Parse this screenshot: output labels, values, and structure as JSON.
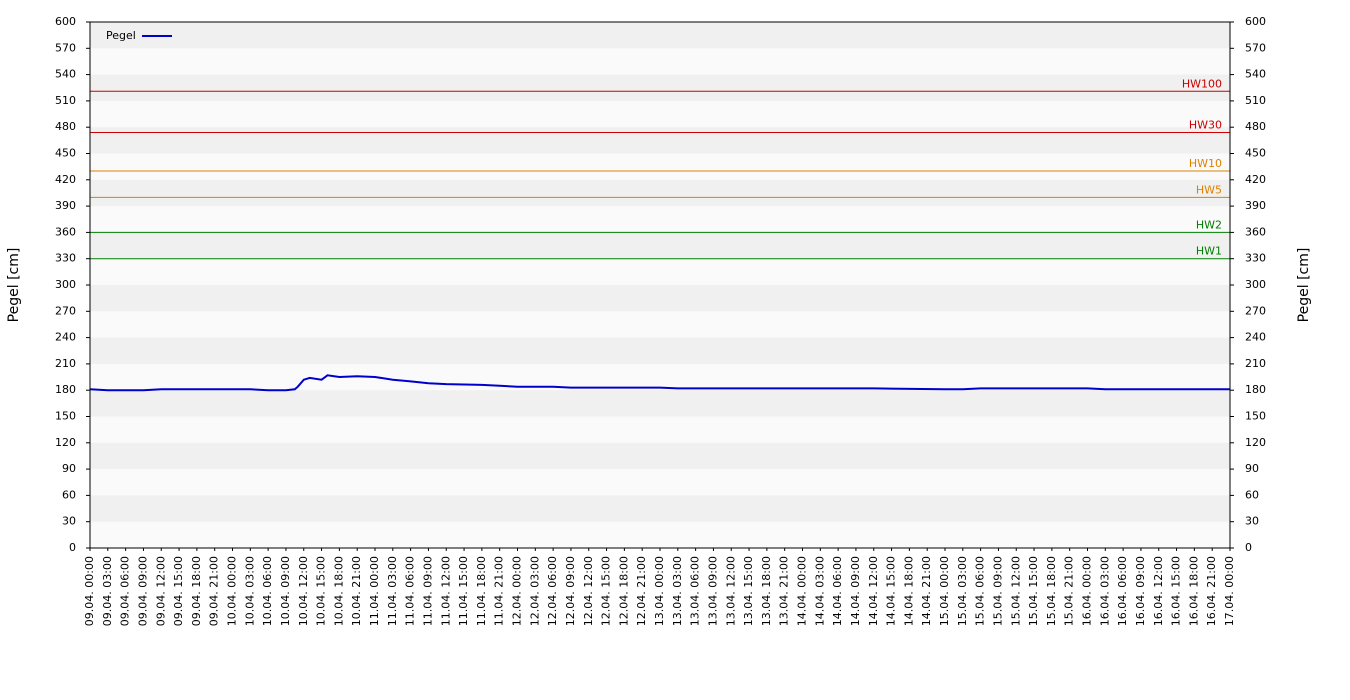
{
  "chart_data": {
    "type": "line",
    "y_label": "Pegel [cm]",
    "y2_label": "Pegel [cm]",
    "xlim": [
      "09.04. 00:00",
      "17.04. 00:00"
    ],
    "xticks": [
      "09.04. 00:00",
      "09.04. 03:00",
      "09.04. 06:00",
      "09.04. 09:00",
      "09.04. 12:00",
      "09.04. 15:00",
      "09.04. 18:00",
      "09.04. 21:00",
      "10.04. 00:00",
      "10.04. 03:00",
      "10.04. 06:00",
      "10.04. 09:00",
      "10.04. 12:00",
      "10.04. 15:00",
      "10.04. 18:00",
      "10.04. 21:00",
      "11.04. 00:00",
      "11.04. 03:00",
      "11.04. 06:00",
      "11.04. 09:00",
      "11.04. 12:00",
      "11.04. 15:00",
      "11.04. 18:00",
      "11.04. 21:00",
      "12.04. 00:00",
      "12.04. 03:00",
      "12.04. 06:00",
      "12.04. 09:00",
      "12.04. 12:00",
      "12.04. 15:00",
      "12.04. 18:00",
      "12.04. 21:00",
      "13.04. 00:00",
      "13.04. 03:00",
      "13.04. 06:00",
      "13.04. 09:00",
      "13.04. 12:00",
      "13.04. 15:00",
      "13.04. 18:00",
      "13.04. 21:00",
      "14.04. 00:00",
      "14.04. 03:00",
      "14.04. 06:00",
      "14.04. 09:00",
      "14.04. 12:00",
      "14.04. 15:00",
      "14.04. 18:00",
      "14.04. 21:00",
      "15.04. 00:00",
      "15.04. 03:00",
      "15.04. 06:00",
      "15.04. 09:00",
      "15.04. 12:00",
      "15.04. 15:00",
      "15.04. 18:00",
      "15.04. 21:00",
      "16.04. 00:00",
      "16.04. 03:00",
      "16.04. 06:00",
      "16.04. 09:00",
      "16.04. 12:00",
      "16.04. 15:00",
      "16.04. 18:00",
      "16.04. 21:00",
      "17.04. 00:00"
    ],
    "ylim": [
      0,
      600
    ],
    "yticks": [
      0,
      30,
      60,
      90,
      120,
      150,
      180,
      210,
      240,
      270,
      300,
      330,
      360,
      390,
      420,
      450,
      480,
      510,
      540,
      570,
      600
    ],
    "y2lim": [
      0,
      600
    ],
    "y2ticks": [
      0,
      30,
      60,
      90,
      120,
      150,
      180,
      210,
      240,
      270,
      300,
      330,
      360,
      390,
      420,
      450,
      480,
      510,
      540,
      570,
      600
    ],
    "series": [
      {
        "name": "Pegel",
        "color": "#0000cc",
        "x": [
          "09.04. 00:00",
          "09.04. 03:00",
          "09.04. 09:00",
          "09.04. 12:00",
          "10.04. 03:00",
          "10.04. 06:00",
          "10.04. 09:00",
          "10.04. 10:30",
          "10.04. 11:00",
          "10.04. 12:00",
          "10.04. 13:00",
          "10.04. 15:00",
          "10.04. 16:00",
          "10.04. 18:00",
          "10.04. 21:00",
          "11.04. 00:00",
          "11.04. 03:00",
          "11.04. 06:00",
          "11.04. 09:00",
          "11.04. 12:00",
          "11.04. 18:00",
          "11.04. 21:00",
          "12.04. 00:00",
          "12.04. 06:00",
          "12.04. 09:00",
          "13.04. 00:00",
          "13.04. 03:00",
          "14.04. 12:00",
          "15.04. 00:00",
          "15.04. 03:00",
          "15.04. 06:00",
          "16.04. 00:00",
          "16.04. 03:00",
          "16.04. 12:00",
          "17.04. 00:00"
        ],
        "values": [
          181,
          180,
          180,
          181,
          181,
          180,
          180,
          181,
          184,
          192,
          194,
          192,
          197,
          195,
          196,
          195,
          192,
          190,
          188,
          187,
          186,
          185,
          184,
          184,
          183,
          183,
          182,
          182,
          181,
          181,
          182,
          182,
          181,
          181,
          181
        ]
      }
    ],
    "thresholds": [
      {
        "label": "HW100",
        "value": 521,
        "color": "#cc0000"
      },
      {
        "label": "HW30",
        "value": 474,
        "color": "#cc0000"
      },
      {
        "label": "HW10",
        "value": 430,
        "color": "#e08000"
      },
      {
        "label": "HW5",
        "value": 400,
        "color": "#e08000"
      },
      {
        "label": "HW2",
        "value": 360,
        "color": "#008000"
      },
      {
        "label": "HW1",
        "value": 330,
        "color": "#008000"
      }
    ]
  }
}
